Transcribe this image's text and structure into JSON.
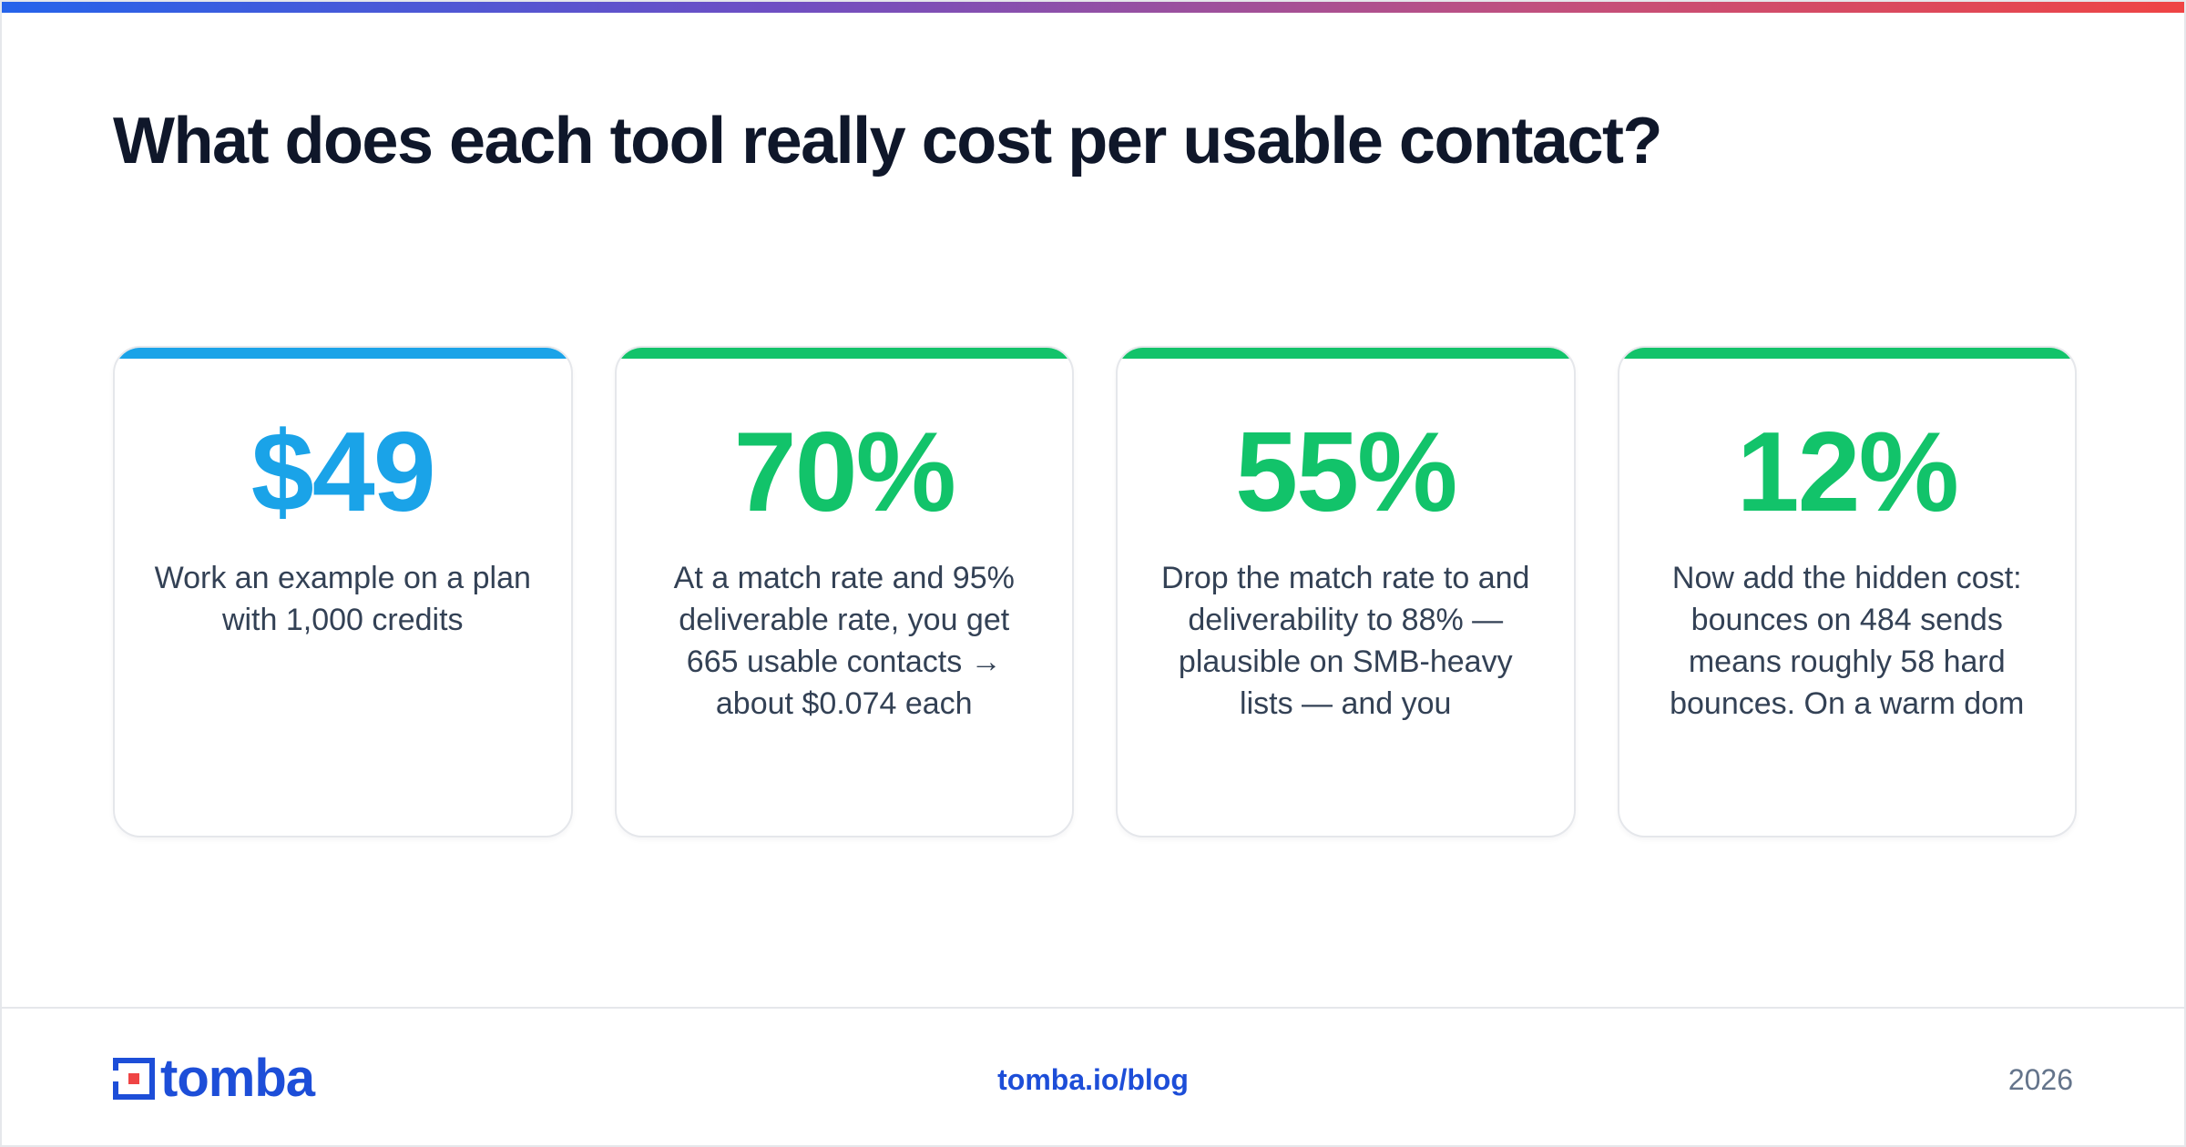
{
  "title": "What does each tool really cost per usable contact?",
  "colors": {
    "blue_accent": "#0ea5e9",
    "green_accent": "#10b981",
    "brand": "#1d4ed8",
    "logo_red": "#ef4444"
  },
  "cards": [
    {
      "value": "$49",
      "text": "Work an example on a plan with 1,000 credits",
      "accent": "#1aa3e8"
    },
    {
      "value": "70%",
      "text": "At a match rate and 95% deliverable rate, you get 665 usable contacts → about $0.074 each",
      "accent": "#12c36a"
    },
    {
      "value": "55%",
      "text": "Drop the match rate to and deliverability to 88% — plausible on SMB-heavy lists — and you",
      "accent": "#12c36a"
    },
    {
      "value": "12%",
      "text": "Now add the hidden cost: bounces on 484 sends means roughly 58 hard bounces. On a warm dom",
      "accent": "#12c36a"
    }
  ],
  "footer": {
    "logo_text": "tomba",
    "link": "tomba.io/blog",
    "year": "2026"
  }
}
